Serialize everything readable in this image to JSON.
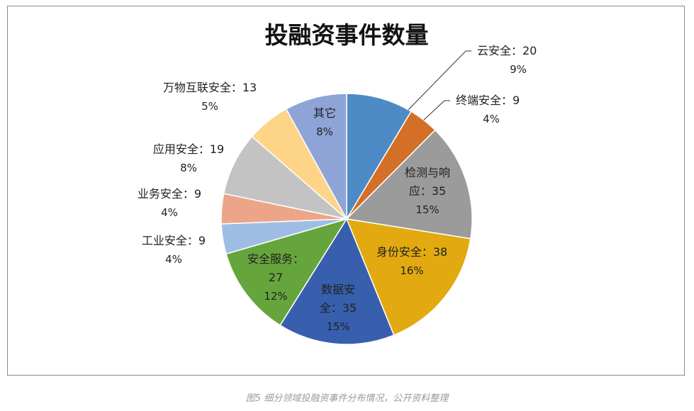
{
  "chart_data": {
    "type": "pie",
    "title": "投融资事件数量",
    "separator": "：",
    "slices": [
      {
        "label": "云安全",
        "value": 20,
        "percent": "9%",
        "color": "#4e8ac6"
      },
      {
        "label": "终端安全",
        "value": 9,
        "percent": "4%",
        "color": "#d46f27"
      },
      {
        "label": "检测与响应",
        "value": 35,
        "percent": "15%",
        "color": "#9b9b9b"
      },
      {
        "label": "身份安全",
        "value": 38,
        "percent": "16%",
        "color": "#e2aa10"
      },
      {
        "label": "数据安全",
        "value": 35,
        "percent": "15%",
        "color": "#375fad"
      },
      {
        "label": "安全服务",
        "value": 27,
        "percent": "12%",
        "color": "#66a53c"
      },
      {
        "label": "工业安全",
        "value": 9,
        "percent": "4%",
        "color": "#9fbde4"
      },
      {
        "label": "业务安全",
        "value": 9,
        "percent": "4%",
        "color": "#eda58a"
      },
      {
        "label": "应用安全",
        "value": 19,
        "percent": "8%",
        "color": "#c3c3c3"
      },
      {
        "label": "万物互联安全",
        "value": 13,
        "percent": "5%",
        "color": "#fdd488"
      },
      {
        "label": "其它",
        "value": null,
        "percent": "8%",
        "color": "#8fa4d6"
      }
    ]
  },
  "caption": "图5 细分领域投融资事件分布情况，公开资料整理"
}
